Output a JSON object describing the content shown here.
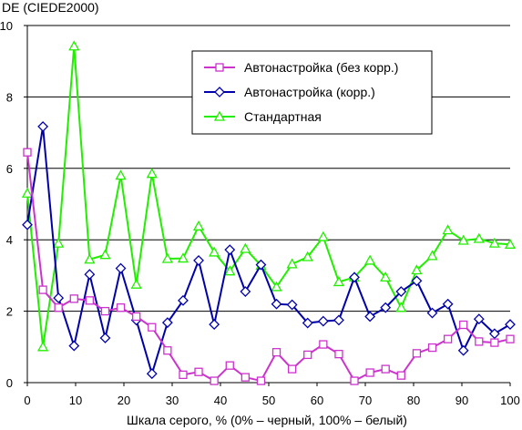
{
  "chart_data": {
    "type": "line",
    "ylabel": "DE (CIEDE2000)",
    "xlabel": "Шкала серого, % (0% – черный, 100% – белый)",
    "xlim": [
      0,
      100
    ],
    "ylim": [
      0,
      10
    ],
    "x_ticks": [
      0,
      10,
      20,
      30,
      40,
      50,
      60,
      70,
      80,
      90,
      100
    ],
    "y_ticks": [
      0,
      2,
      4,
      6,
      8,
      10
    ],
    "grid": "horizontal",
    "legend_position": "top-right",
    "x": [
      0,
      3.23,
      6.45,
      9.68,
      12.9,
      16.13,
      19.35,
      22.58,
      25.81,
      29.03,
      32.26,
      35.48,
      38.71,
      41.94,
      45.16,
      48.39,
      51.61,
      54.84,
      58.06,
      61.29,
      64.52,
      67.74,
      70.97,
      74.19,
      77.42,
      80.65,
      83.87,
      87.1,
      90.32,
      93.55,
      96.77,
      100
    ],
    "series": [
      {
        "name": "Автонастройка (без корр.)",
        "color": "#cc33cc",
        "marker": "square",
        "values": [
          6.45,
          2.6,
          2.1,
          2.35,
          2.3,
          2.0,
          2.1,
          1.85,
          1.55,
          0.9,
          0.22,
          0.3,
          0.05,
          0.48,
          0.15,
          0.05,
          0.85,
          0.38,
          0.78,
          1.07,
          0.8,
          0.05,
          0.28,
          0.38,
          0.2,
          0.82,
          0.98,
          1.22,
          1.62,
          1.15,
          1.12,
          1.22
        ]
      },
      {
        "name": "Автонастройка (корр.)",
        "color": "#0000aa",
        "marker": "diamond",
        "values": [
          4.42,
          7.17,
          2.37,
          1.03,
          3.03,
          1.25,
          3.2,
          1.75,
          0.25,
          1.68,
          2.3,
          3.42,
          1.63,
          3.72,
          2.55,
          3.3,
          2.2,
          2.18,
          1.67,
          1.72,
          1.75,
          2.95,
          1.85,
          2.1,
          2.55,
          2.85,
          1.95,
          2.2,
          0.9,
          1.78,
          1.37,
          1.63
        ]
      },
      {
        "name": "Стандартная",
        "color": "#22ee00",
        "marker": "triangle",
        "values": [
          5.3,
          1.0,
          3.9,
          9.42,
          3.45,
          3.58,
          5.8,
          2.75,
          5.85,
          3.47,
          3.48,
          4.38,
          3.65,
          3.12,
          3.75,
          3.28,
          2.68,
          3.32,
          3.52,
          4.08,
          2.82,
          2.95,
          3.42,
          2.95,
          2.1,
          3.15,
          3.55,
          4.27,
          3.98,
          4.03,
          3.9,
          3.87
        ]
      }
    ]
  }
}
